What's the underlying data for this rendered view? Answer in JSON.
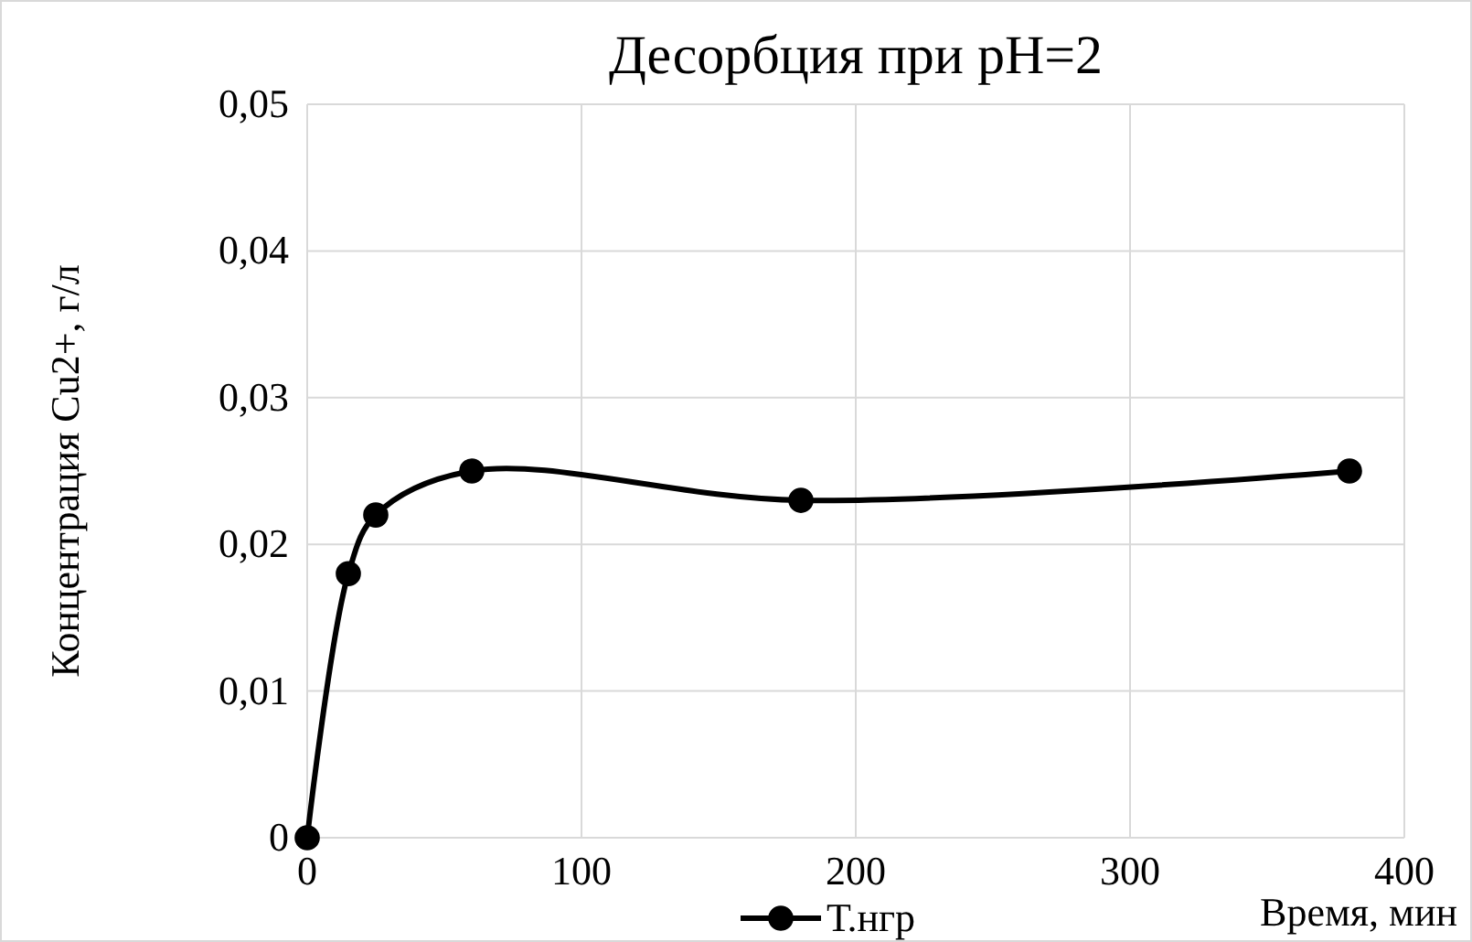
{
  "chart_data": {
    "type": "line",
    "title": "Десорбция при pH=2",
    "xlabel": "Время, мин",
    "ylabel": "Концентрация Cu2+, г/л",
    "series": [
      {
        "name": "Т.нгр",
        "color": "#000000",
        "x": [
          0,
          15,
          25,
          60,
          180,
          380
        ],
        "values": [
          0,
          0.018,
          0.022,
          0.025,
          0.023,
          0.025
        ]
      }
    ],
    "xlim": [
      0,
      400
    ],
    "xticks": [
      0,
      100,
      200,
      300,
      400
    ],
    "ylim": [
      0,
      0.05
    ],
    "yticks": [
      0,
      {
        "value": 0.01,
        "label": "0,01"
      },
      {
        "value": 0.02,
        "label": "0,02"
      },
      {
        "value": 0.03,
        "label": "0,03"
      },
      {
        "value": 0.04,
        "label": "0,04"
      },
      {
        "value": 0.05,
        "label": "0,05"
      }
    ],
    "grid": true,
    "legend": "bottom",
    "marker": "circle",
    "line_style": "solid"
  }
}
